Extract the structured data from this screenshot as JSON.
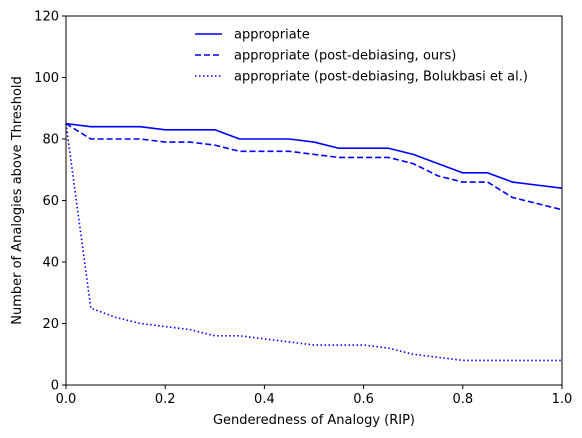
{
  "chart_data": {
    "type": "line",
    "title": "",
    "xlabel": "Genderedness of Analogy (RIP)",
    "ylabel": "Number of Analogies above Threshold",
    "xlim": [
      0,
      1
    ],
    "ylim": [
      0,
      120
    ],
    "xticks": [
      0.0,
      0.2,
      0.4,
      0.6,
      0.8,
      1.0
    ],
    "xtick_labels": [
      "0.0",
      "0.2",
      "0.4",
      "0.6",
      "0.8",
      "1.0"
    ],
    "yticks": [
      0,
      20,
      40,
      60,
      80,
      100,
      120
    ],
    "ytick_labels": [
      "0",
      "20",
      "40",
      "60",
      "80",
      "100",
      "120"
    ],
    "grid": false,
    "legend_position": "top-center",
    "x": [
      0.0,
      0.05,
      0.1,
      0.15,
      0.2,
      0.25,
      0.3,
      0.35,
      0.4,
      0.45,
      0.5,
      0.55,
      0.6,
      0.65,
      0.7,
      0.75,
      0.8,
      0.85,
      0.9,
      0.95,
      1.0
    ],
    "series": [
      {
        "name": "appropriate",
        "color": "#0000ff",
        "line_style": "solid",
        "values": [
          85,
          84,
          84,
          84,
          83,
          83,
          83,
          80,
          80,
          80,
          79,
          77,
          77,
          77,
          75,
          72,
          69,
          69,
          66,
          65,
          64
        ]
      },
      {
        "name": "appropriate (post-debiasing, ours)",
        "color": "#0000ff",
        "line_style": "dashed",
        "values": [
          85,
          80,
          80,
          80,
          79,
          79,
          78,
          76,
          76,
          76,
          75,
          74,
          74,
          74,
          72,
          68,
          66,
          66,
          61,
          59,
          57
        ]
      },
      {
        "name": "appropriate (post-debiasing, Bolukbasi et al.)",
        "color": "#0000ff",
        "line_style": "dotted",
        "values": [
          85,
          25,
          22,
          20,
          19,
          18,
          16,
          16,
          15,
          14,
          13,
          13,
          13,
          12,
          10,
          9,
          8,
          8,
          8,
          8,
          8
        ]
      }
    ]
  }
}
